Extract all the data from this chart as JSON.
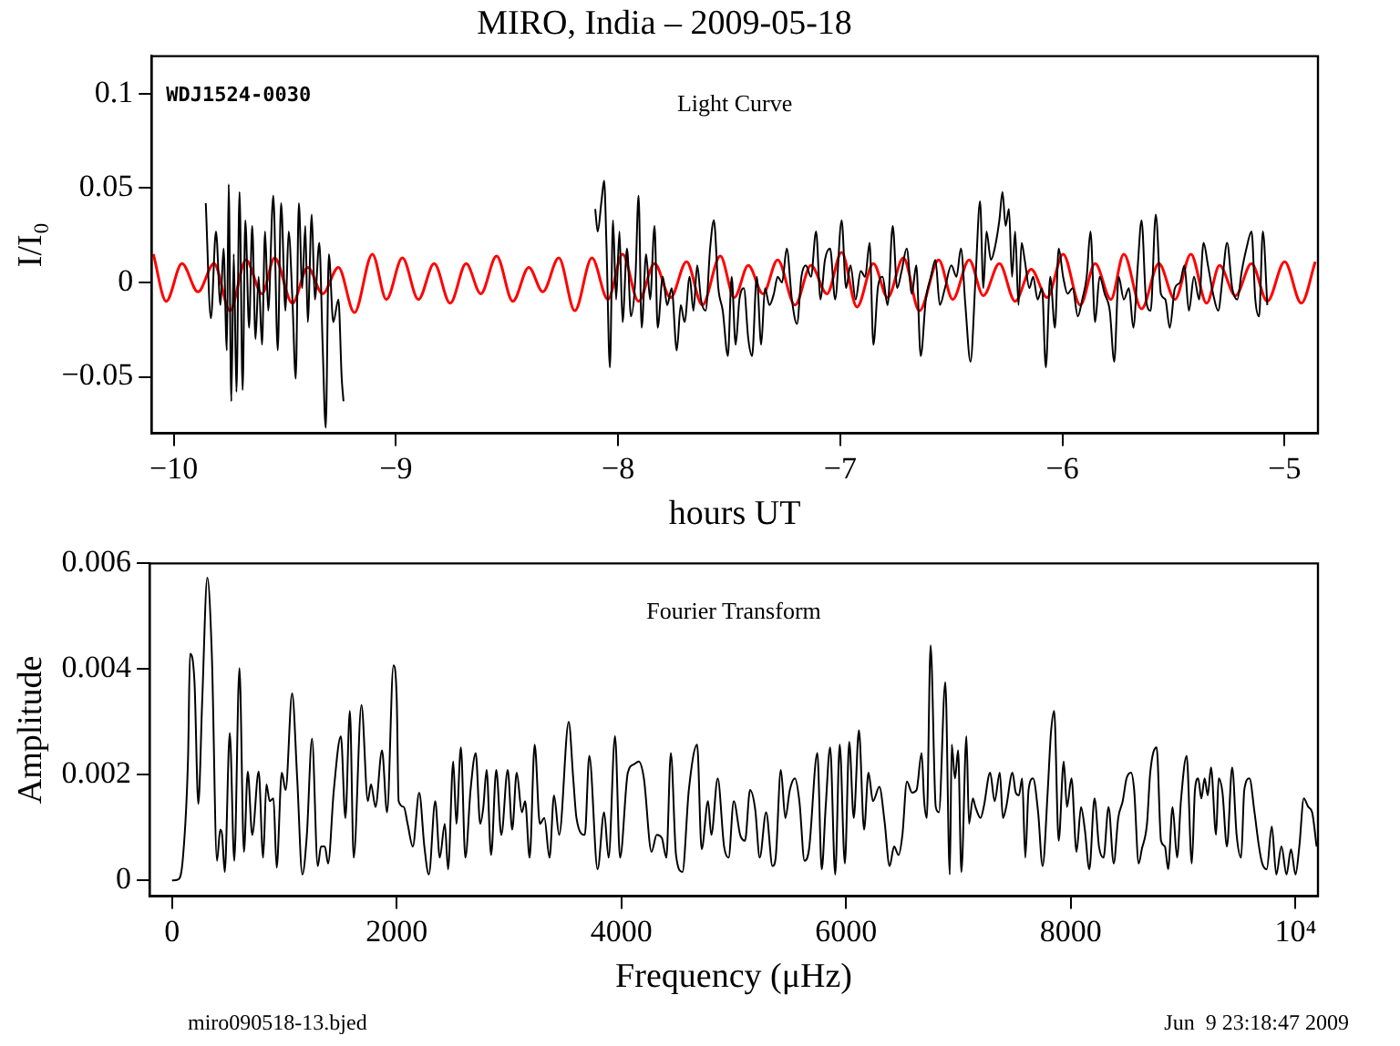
{
  "chart_data": [
    {
      "type": "line",
      "title": "MIRO, India – 2009-05-18",
      "xlabel": "hours UT",
      "ylabel": "I/I₀",
      "xlim": [
        -10.1,
        -4.85
      ],
      "ylim": [
        -0.08,
        0.12
      ],
      "xticks": [
        {
          "value": -10,
          "label": "−10"
        },
        {
          "value": -9,
          "label": "−9"
        },
        {
          "value": -8,
          "label": "−8"
        },
        {
          "value": -7,
          "label": "−7"
        },
        {
          "value": -6,
          "label": "−6"
        },
        {
          "value": -5,
          "label": "−5"
        }
      ],
      "yticks": [
        {
          "value": -0.05,
          "label": "−0.05"
        },
        0,
        0.05,
        0.1
      ],
      "grid": false,
      "legend": false,
      "marker": "none",
      "annotations": [
        "WDJ1524-0030",
        "Light Curve"
      ],
      "series": [
        {
          "color": "#000000",
          "x": [
            -9.856,
            -9.833,
            -9.81,
            -9.79,
            -9.776,
            -9.761,
            -9.753,
            -9.741,
            -9.73,
            -9.718,
            -9.704,
            -9.69,
            -9.678,
            -9.661,
            -9.647,
            -9.632,
            -9.618,
            -9.603,
            -9.589,
            -9.575,
            -9.552,
            -9.532,
            -9.517,
            -9.497,
            -9.483,
            -9.466,
            -9.451,
            -9.437,
            -9.422,
            -9.408,
            -9.397,
            -9.379,
            -9.365,
            -9.345,
            -9.33,
            -9.316,
            -9.302,
            -9.282,
            -9.259,
            -9.244,
            -9.236,
            -8.7,
            -8.103,
            -8.092,
            -8.075,
            -8.063,
            -8.052,
            -8.037,
            -8.023,
            -8.009,
            -7.994,
            -7.98,
            -7.96,
            -7.942,
            -7.922,
            -7.908,
            -7.894,
            -7.874,
            -7.856,
            -7.836,
            -7.822,
            -7.799,
            -7.779,
            -7.759,
            -7.736,
            -7.718,
            -7.701,
            -7.678,
            -7.661,
            -7.644,
            -7.627,
            -7.606,
            -7.586,
            -7.569,
            -7.549,
            -7.529,
            -7.506,
            -7.489,
            -7.471,
            -7.454,
            -7.434,
            -7.414,
            -7.397,
            -7.376,
            -7.356,
            -7.339,
            -7.319,
            -7.299,
            -7.282,
            -7.262,
            -7.241,
            -7.218,
            -7.195,
            -7.175,
            -7.155,
            -7.132,
            -7.109,
            -7.089,
            -7.069,
            -7.046,
            -7.023,
            -6.994,
            -6.974,
            -6.954,
            -6.931,
            -6.908,
            -6.888,
            -6.868,
            -6.851,
            -6.831,
            -6.81,
            -6.787,
            -6.764,
            -6.744,
            -6.724,
            -6.701,
            -6.678,
            -6.658,
            -6.638,
            -6.615,
            -6.592,
            -6.572,
            -6.552,
            -6.529,
            -6.5,
            -6.477,
            -6.457,
            -6.437,
            -6.414,
            -6.391,
            -6.371,
            -6.356,
            -6.342,
            -6.322,
            -6.305,
            -6.284,
            -6.27,
            -6.256,
            -6.241,
            -6.227,
            -6.213,
            -6.198,
            -6.184,
            -6.17,
            -6.149,
            -6.132,
            -6.112,
            -6.092,
            -6.075,
            -6.055,
            -6.034,
            -6.017,
            -5.997,
            -5.977,
            -5.954,
            -5.931,
            -5.911,
            -5.891,
            -5.874,
            -5.853,
            -5.833,
            -5.81,
            -5.787,
            -5.767,
            -5.747,
            -5.724,
            -5.701,
            -5.681,
            -5.661,
            -5.644,
            -5.624,
            -5.603,
            -5.58,
            -5.557,
            -5.537,
            -5.517,
            -5.494,
            -5.471,
            -5.451,
            -5.431,
            -5.408,
            -5.385,
            -5.365,
            -5.345,
            -5.322,
            -5.299,
            -5.279,
            -5.259,
            -5.236,
            -5.213,
            -5.193,
            -5.172,
            -5.149,
            -5.132,
            -5.115,
            -5.098,
            -5.078
          ],
          "values": [
            0.042,
            -0.019,
            0.027,
            -0.012,
            0.018,
            -0.036,
            0.052,
            -0.063,
            0.015,
            -0.058,
            0.048,
            -0.057,
            0.033,
            -0.024,
            0.03,
            -0.03,
            0.003,
            -0.033,
            0.027,
            -0.015,
            0.046,
            -0.036,
            0.042,
            -0.015,
            0.027,
            -0.009,
            -0.051,
            0.042,
            -0.003,
            0.03,
            -0.021,
            0.036,
            -0.009,
            0.021,
            -0.033,
            -0.077,
            0.015,
            -0.021,
            -0.009,
            -0.051,
            -0.063,
            null,
            0.039,
            0.027,
            0.043,
            0.054,
            0.018,
            -0.045,
            0.033,
            -0.009,
            0.027,
            -0.021,
            0.018,
            -0.018,
            0.003,
            0.046,
            -0.024,
            0.015,
            -0.009,
            0.03,
            -0.024,
            0.003,
            -0.012,
            -0.003,
            -0.036,
            -0.012,
            -0.021,
            0.003,
            -0.015,
            0.009,
            -0.009,
            -0.015,
            0.018,
            0.033,
            -0.003,
            -0.015,
            -0.039,
            0.003,
            -0.033,
            -0.009,
            -0.003,
            -0.03,
            -0.039,
            0.003,
            -0.033,
            -0.003,
            -0.012,
            -0.006,
            0.003,
            0,
            0.018,
            -0.009,
            -0.022,
            0.003,
            0.009,
            0.003,
            0.027,
            -0.009,
            0.012,
            0.018,
            -0.009,
            0.033,
            -0.003,
            0.009,
            -0.009,
            0.006,
            0.003,
            0.021,
            -0.033,
            -0.003,
            0.003,
            -0.012,
            0.03,
            -0.003,
            0.006,
            0.018,
            -0.006,
            0.009,
            -0.039,
            -0.009,
            0.003,
            0.012,
            -0.012,
            -0.003,
            0.009,
            0.003,
            0.018,
            -0.012,
            -0.042,
            0.003,
            0.043,
            -0.003,
            0.027,
            0.012,
            0.018,
            0.033,
            0.048,
            0.03,
            0.039,
            0.003,
            0.027,
            -0.012,
            0.021,
            0.012,
            -0.003,
            0.003,
            -0.009,
            -0.003,
            -0.045,
            0.003,
            -0.024,
            0.018,
            0.003,
            -0.006,
            -0.003,
            -0.018,
            -0.009,
            0.003,
            0.027,
            -0.021,
            0.003,
            -0.006,
            -0.015,
            -0.042,
            0.003,
            -0.009,
            -0.003,
            -0.024,
            0.009,
            0.033,
            -0.009,
            -0.015,
            0.036,
            -0.006,
            -0.009,
            -0.024,
            -0.003,
            0,
            0.009,
            -0.015,
            0.003,
            -0.009,
            0.021,
            0.009,
            -0.006,
            -0.015,
            0.003,
            0.021,
            -0.003,
            -0.009,
            0.006,
            0.018,
            0.027,
            -0.009,
            -0.018,
            0.027,
            -0.012
          ]
        },
        {
          "color": "#ff0000",
          "x": [
            -10.092,
            -10.034,
            -9.963,
            -9.891,
            -9.819,
            -9.747,
            -9.675,
            -9.603,
            -9.546,
            -9.466,
            -9.397,
            -9.33,
            -9.259,
            -9.187,
            -9.106,
            -9.043,
            -8.971,
            -8.899,
            -8.828,
            -8.756,
            -8.684,
            -8.618,
            -8.547,
            -8.474,
            -8.402,
            -8.339,
            -8.267,
            -8.195,
            -8.118,
            -8.046,
            -7.98,
            -7.908,
            -7.836,
            -7.764,
            -7.692,
            -7.621,
            -7.54,
            -7.477,
            -7.414,
            -7.348,
            -7.282,
            -7.204,
            -7.132,
            -7.06,
            -6.994,
            -6.925,
            -6.851,
            -6.787,
            -6.716,
            -6.644,
            -6.557,
            -6.494,
            -6.42,
            -6.356,
            -6.284,
            -6.213,
            -6.141,
            -6.069,
            -5.997,
            -5.92,
            -5.853,
            -5.782,
            -5.724,
            -5.644,
            -5.566,
            -5.494,
            -5.422,
            -5.351,
            -5.293,
            -5.221,
            -5.149,
            -5.078,
            -5.0,
            -4.925,
            -4.862
          ],
          "values": [
            0.015,
            -0.01,
            0.01,
            -0.005,
            0.01,
            -0.015,
            0.012,
            -0.006,
            0.013,
            -0.011,
            0.008,
            -0.006,
            0.008,
            -0.016,
            0.015,
            -0.009,
            0.013,
            -0.009,
            0.01,
            -0.011,
            0.01,
            -0.006,
            0.014,
            -0.01,
            0.008,
            -0.005,
            0.013,
            -0.015,
            0.013,
            -0.009,
            0.015,
            -0.01,
            0.01,
            -0.008,
            0.011,
            -0.012,
            0.014,
            -0.008,
            0.009,
            -0.006,
            0.012,
            -0.012,
            0.009,
            -0.006,
            0.016,
            -0.013,
            0.01,
            -0.008,
            0.013,
            -0.015,
            0.012,
            -0.009,
            0.012,
            -0.007,
            0.01,
            -0.01,
            0.007,
            -0.008,
            0.015,
            -0.012,
            0.01,
            -0.009,
            0.015,
            -0.014,
            0.01,
            -0.009,
            0.015,
            -0.011,
            0.009,
            -0.007,
            0.01,
            -0.01,
            0.011,
            -0.011,
            0.011
          ]
        }
      ]
    },
    {
      "type": "line",
      "xlabel": "Frequency (μHz)",
      "ylabel": "Amplitude",
      "xlim": [
        -200,
        10200
      ],
      "ylim": [
        -0.0003,
        0.006
      ],
      "xticks": [
        0,
        2000,
        4000,
        6000,
        8000,
        {
          "value": 10000,
          "label": "10⁴"
        }
      ],
      "yticks": [
        0,
        0.002,
        0.004,
        0.006
      ],
      "grid": false,
      "legend": false,
      "marker": "none",
      "annotations": [
        "Fourier Transform",
        "miro090518-13.bjed",
        "Jun  9 23:18:47 2009"
      ],
      "series": [
        {
          "color": "#000000",
          "x": [
            0,
            57,
            97,
            143,
            160,
            200,
            234,
            269,
            314,
            354,
            400,
            429,
            446,
            469,
            514,
            554,
            600,
            640,
            674,
            714,
            771,
            811,
            840,
            869,
            903,
            931,
            977,
            1011,
            1069,
            1114,
            1160,
            1200,
            1246,
            1297,
            1326,
            1360,
            1389,
            1440,
            1503,
            1543,
            1583,
            1617,
            1686,
            1743,
            1771,
            1811,
            1869,
            1914,
            1971,
            2000,
            2017,
            2063,
            2097,
            2143,
            2200,
            2246,
            2286,
            2343,
            2383,
            2428,
            2457,
            2503,
            2531,
            2571,
            2611,
            2657,
            2703,
            2743,
            2771,
            2800,
            2840,
            2886,
            2931,
            2988,
            3028,
            3068,
            3114,
            3143,
            3183,
            3228,
            3274,
            3314,
            3360,
            3400,
            3446,
            3531,
            3571,
            3600,
            3674,
            3714,
            3788,
            3846,
            3886,
            3943,
            3988,
            4057,
            4114,
            4154,
            4200,
            4268,
            4314,
            4360,
            4400,
            4440,
            4486,
            4543,
            4600,
            4674,
            4714,
            4771,
            4800,
            4857,
            4914,
            4954,
            5000,
            5057,
            5100,
            5145,
            5191,
            5231,
            5288,
            5345,
            5373,
            5419,
            5459,
            5499,
            5544,
            5584,
            5630,
            5670,
            5744,
            5783,
            5818,
            5858,
            5903,
            5943,
            5989,
            6028,
            6068,
            6114,
            6160,
            6199,
            6239,
            6296,
            6342,
            6387,
            6427,
            6467,
            6501,
            6541,
            6587,
            6627,
            6672,
            6695,
            6718,
            6752,
            6798,
            6826,
            6883,
            6923,
            6940,
            6969,
            6997,
            7026,
            7071,
            7094,
            7128,
            7151,
            7197,
            7225,
            7282,
            7322,
            7368,
            7396,
            7425,
            7481,
            7510,
            7538,
            7567,
            7595,
            7624,
            7664,
            7709,
            7749,
            7795,
            7823,
            7852,
            7892,
            7937,
            7966,
            8006,
            8051,
            8091,
            8125,
            8165,
            8211,
            8251,
            8291,
            8336,
            8382,
            8422,
            8462,
            8496,
            8536,
            8564,
            8604,
            8632,
            8678,
            8707,
            8764,
            8803,
            8838,
            8866,
            8906,
            8946,
            8980,
            9031,
            9077,
            9105,
            9134,
            9162,
            9191,
            9219,
            9248,
            9293,
            9316,
            9350,
            9390,
            9436,
            9476,
            9516,
            9544,
            9590,
            9635,
            9675,
            9704,
            9744,
            9789,
            9829,
            9875,
            9920,
            9960,
            10000,
            10034,
            10074,
            10114,
            10148,
            10188
          ],
          "values": [
            0,
            2e-05,
            0.00043,
            0.00236,
            0.00429,
            0.00375,
            0.00145,
            0.00343,
            0.00573,
            0.00429,
            0.00037,
            0.00096,
            0.00086,
            0.00016,
            0.00279,
            0.00037,
            0.00402,
            0.00054,
            0.00206,
            0.00086,
            0.00206,
            0.00043,
            0.00182,
            0.0015,
            0.00155,
            0.00024,
            0.00204,
            0.00171,
            0.00354,
            0.00193,
            0.00011,
            0.00086,
            0.00268,
            0.00027,
            0.00064,
            0.00064,
            0.00032,
            0.00171,
            0.00273,
            0.00118,
            0.00321,
            0.00043,
            0.00332,
            0.0015,
            0.00182,
            0.00139,
            0.00246,
            0.00129,
            0.00407,
            0.00343,
            0.0015,
            0.00139,
            0.00107,
            0.00064,
            0.00166,
            0.00064,
            0.00011,
            0.0015,
            0.00043,
            0.00107,
            0.00021,
            0.00225,
            0.00107,
            0.00252,
            0.00043,
            0.00171,
            0.00241,
            0.00107,
            0.00139,
            0.00209,
            0.00048,
            0.00209,
            0.00086,
            0.00209,
            0.00096,
            0.00204,
            0.00129,
            0.0015,
            0.00043,
            0.00257,
            0.00107,
            0.00118,
            0.00043,
            0.00161,
            0.00086,
            0.003,
            0.00193,
            0.00118,
            0.00086,
            0.00236,
            0.00021,
            0.00129,
            0.00043,
            0.00273,
            0.00043,
            0.00204,
            0.0022,
            0.00225,
            0.00193,
            0.00054,
            0.00086,
            0.0008,
            0.00043,
            0.00241,
            0.00048,
            0.00016,
            0.00171,
            0.00257,
            0.00059,
            0.0015,
            0.00086,
            0.00193,
            0.00064,
            0.00043,
            0.0015,
            0.00086,
            0.00075,
            0.00171,
            0.00134,
            0.00043,
            0.00129,
            0.00027,
            0.00043,
            0.00209,
            0.00118,
            0.00171,
            0.00193,
            0.0015,
            0.00037,
            0.00059,
            0.00241,
            0.00021,
            0.00139,
            0.00252,
            0.00011,
            0.00257,
            0.00032,
            0.00262,
            0.00118,
            0.00284,
            0.00096,
            0.00204,
            0.0015,
            0.00177,
            0.00112,
            0.00027,
            0.00064,
            0.00048,
            0.00086,
            0.00187,
            0.00166,
            0.00171,
            0.00241,
            0.0015,
            0.00118,
            0.00445,
            0.00139,
            0.00129,
            0.00375,
            0.00011,
            0.00257,
            0.00193,
            0.00246,
            0.00016,
            0.00273,
            0.00107,
            0.00155,
            0.00139,
            0.00118,
            0.00139,
            0.00204,
            0.0015,
            0.00204,
            0.00118,
            0.00139,
            0.00204,
            0.00166,
            0.00161,
            0.00193,
            0.00043,
            0.00171,
            0.00193,
            0.00129,
            0.00027,
            0.00171,
            0.00279,
            0.00321,
            0.00075,
            0.00225,
            0.00139,
            0.00193,
            0.00054,
            0.00139,
            0.00096,
            0.00021,
            0.00155,
            0.00064,
            0.00043,
            0.00139,
            0.00032,
            0.00118,
            0.0015,
            0.00193,
            0.00204,
            0.00171,
            0.00032,
            0.00059,
            0.00107,
            0.00204,
            0.00252,
            0.00075,
            0.00064,
            0.00021,
            0.00139,
            0.00043,
            0.0015,
            0.00236,
            0.00032,
            0.00171,
            0.00193,
            0.00155,
            0.00193,
            0.00161,
            0.00214,
            0.00086,
            0.00193,
            0.00166,
            0.00064,
            0.00214,
            0.00086,
            0.00043,
            0.00171,
            0.00193,
            0.00129,
            0.00064,
            0.00032,
            0.00021,
            0.00102,
            0.00011,
            0.00064,
            0.00011,
            0.00059,
            0.00011,
            0.00064,
            0.00155,
            0.00139,
            0.00129,
            0.00064
          ]
        }
      ]
    }
  ]
}
